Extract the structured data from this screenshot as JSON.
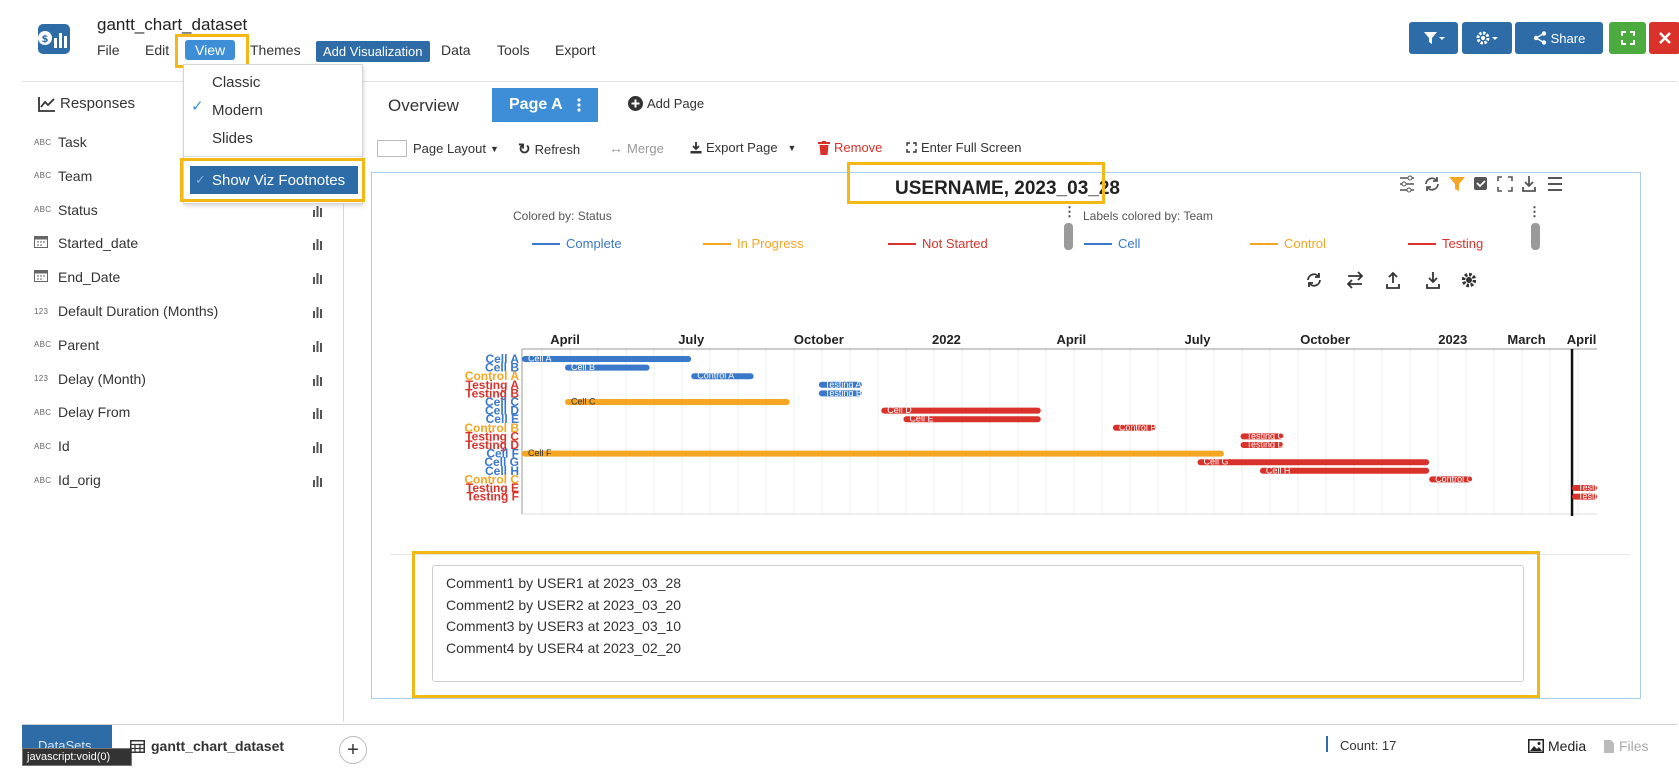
{
  "app": {
    "title": "gantt_chart_dataset"
  },
  "menu": {
    "file": "File",
    "edit": "Edit",
    "view": "View",
    "themes": "Themes",
    "add_visualization": "Add Visualization",
    "data": "Data",
    "tools": "Tools",
    "export": "Export"
  },
  "header_buttons": {
    "share": "Share"
  },
  "view_menu": {
    "items": [
      "Classic",
      "Modern",
      "Slides"
    ],
    "checked": "Modern",
    "footnotes": "Show Viz Footnotes"
  },
  "sidebar": {
    "heading": "Responses",
    "fields": [
      {
        "type": "ABC",
        "name": "Task",
        "icon": "text-type-icon"
      },
      {
        "type": "ABC",
        "name": "Team",
        "icon": "text-type-icon"
      },
      {
        "type": "ABC",
        "name": "Status",
        "icon": "text-type-icon"
      },
      {
        "type": "",
        "name": "Started_date",
        "icon": "calendar-icon"
      },
      {
        "type": "",
        "name": "End_Date",
        "icon": "calendar-icon"
      },
      {
        "type": "123",
        "name": "Default Duration (Months)",
        "icon": "number-type-icon"
      },
      {
        "type": "ABC",
        "name": "Parent",
        "icon": "text-type-icon"
      },
      {
        "type": "123",
        "name": "Delay (Month)",
        "icon": "number-type-icon"
      },
      {
        "type": "ABC",
        "name": "Delay From",
        "icon": "text-type-icon"
      },
      {
        "type": "ABC",
        "name": "Id",
        "icon": "text-type-icon"
      },
      {
        "type": "ABC",
        "name": "Id_orig",
        "icon": "text-type-icon"
      }
    ]
  },
  "tabs": {
    "overview": "Overview",
    "page_a": "Page A",
    "add_page": "Add Page"
  },
  "toolbar": {
    "page_layout": "Page Layout",
    "refresh": "Refresh",
    "merge": "Merge",
    "export_page": "Export Page",
    "remove": "Remove",
    "full_screen": "Enter Full Screen"
  },
  "viz": {
    "title": "USERNAME, 2023_03_28",
    "colored_by": "Colored by: Status",
    "labels_colored_by": "Labels colored by: Team",
    "status_legend": [
      {
        "label": "Complete",
        "color": "#3a78c9"
      },
      {
        "label": "In Progress",
        "color": "#f5a623"
      },
      {
        "label": "Not Started",
        "color": "#d9322b"
      }
    ],
    "team_legend": [
      {
        "label": "Cell",
        "color": "#3a78c9"
      },
      {
        "label": "Control",
        "color": "#f5a623"
      },
      {
        "label": "Testing",
        "color": "#d9322b"
      }
    ]
  },
  "chart_data": {
    "type": "gantt",
    "x_ticks": [
      {
        "label": "April",
        "date": "2021-04-01"
      },
      {
        "label": "July",
        "date": "2021-07-01"
      },
      {
        "label": "October",
        "date": "2021-10-01"
      },
      {
        "label": "2022",
        "date": "2022-01-01"
      },
      {
        "label": "April",
        "date": "2022-04-01"
      },
      {
        "label": "July",
        "date": "2022-07-01"
      },
      {
        "label": "October",
        "date": "2022-10-01"
      },
      {
        "label": "2023",
        "date": "2023-01-01"
      },
      {
        "label": "March",
        "date": "2023-03-01"
      },
      {
        "label": "April",
        "date": "2023-04-01"
      }
    ],
    "xlim": [
      "2021-03-01",
      "2023-04-15"
    ],
    "today": "2023-03-28",
    "tasks": [
      {
        "task": "Cell A",
        "team": "Cell",
        "status": "Complete",
        "start": "2021-03-01",
        "end": "2021-07-01"
      },
      {
        "task": "Cell B",
        "team": "Cell",
        "status": "Complete",
        "start": "2021-04-01",
        "end": "2021-06-01"
      },
      {
        "task": "Control A",
        "team": "Control",
        "status": "Complete",
        "start": "2021-07-01",
        "end": "2021-08-15"
      },
      {
        "task": "Testing A",
        "team": "Testing",
        "status": "Complete",
        "start": "2021-10-01",
        "end": "2021-11-01"
      },
      {
        "task": "Testing B",
        "team": "Testing",
        "status": "Complete",
        "start": "2021-10-01",
        "end": "2021-11-01"
      },
      {
        "task": "Cell C",
        "team": "Cell",
        "status": "In Progress",
        "start": "2021-04-01",
        "end": "2021-09-10"
      },
      {
        "task": "Cell D",
        "team": "Cell",
        "status": "Not Started",
        "start": "2021-11-15",
        "end": "2022-03-10"
      },
      {
        "task": "Cell E",
        "team": "Cell",
        "status": "Not Started",
        "start": "2021-12-01",
        "end": "2022-03-10"
      },
      {
        "task": "Control B",
        "team": "Control",
        "status": "Not Started",
        "start": "2022-05-01",
        "end": "2022-06-01"
      },
      {
        "task": "Testing C",
        "team": "Testing",
        "status": "Not Started",
        "start": "2022-08-01",
        "end": "2022-09-01"
      },
      {
        "task": "Testing D",
        "team": "Testing",
        "status": "Not Started",
        "start": "2022-08-01",
        "end": "2022-09-01"
      },
      {
        "task": "Cell F",
        "team": "Cell",
        "status": "In Progress",
        "start": "2021-03-01",
        "end": "2022-07-20"
      },
      {
        "task": "Cell G",
        "team": "Cell",
        "status": "Not Started",
        "start": "2022-07-01",
        "end": "2022-12-15"
      },
      {
        "task": "Cell H",
        "team": "Cell",
        "status": "Not Started",
        "start": "2022-08-15",
        "end": "2022-12-15"
      },
      {
        "task": "Control C",
        "team": "Control",
        "status": "Not Started",
        "start": "2022-12-15",
        "end": "2023-01-15"
      },
      {
        "task": "Testing E",
        "team": "Testing",
        "status": "Not Started",
        "start": "2023-03-28",
        "end": "2023-04-15"
      },
      {
        "task": "Testing F",
        "team": "Testing",
        "status": "Not Started",
        "start": "2023-03-28",
        "end": "2023-04-15"
      }
    ],
    "bar_labels": [
      "Cell A",
      "Cell B",
      "Control A",
      "Testing A",
      "Testing B",
      "Cell C",
      "Cell D",
      "Cell E",
      "Control B",
      "Testing C",
      "Testing D",
      "Cell F",
      "Cell G",
      "Cell H",
      "Control C",
      "Testing E",
      "Testing F"
    ]
  },
  "footnotes": [
    "Comment1 by USER1 at 2023_03_28",
    "Comment2 by USER2 at 2023_03_20",
    "Comment3 by USER3 at 2023_03_10",
    "Comment4 by USER4 at 2023_02_20"
  ],
  "bottom": {
    "datasets_tab": "DataSets",
    "status_tip": "javascript:void(0)",
    "dataset_name": "gantt_chart_dataset",
    "count": "Count: 17",
    "media": "Media",
    "files": "Files"
  },
  "colors": {
    "primary": "#2e6ca8",
    "accent": "#3d8ed6",
    "highlight": "#f3b815",
    "complete": "#3a78c9",
    "in_progress": "#f5a623",
    "not_started": "#d9322b",
    "success": "#4caa3f",
    "danger": "#d9322b"
  }
}
